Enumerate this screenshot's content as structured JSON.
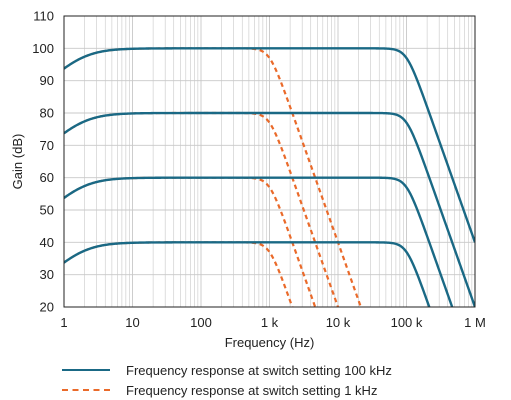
{
  "colors": {
    "series_100k": "#1a6985",
    "series_1k": "#ea6a2a",
    "grid": "#c8c8c8",
    "axis": "#222222"
  },
  "chart_data": {
    "type": "line",
    "xlabel": "Frequency (Hz)",
    "ylabel": "Gain (dB)",
    "x_scale": "log",
    "xlim": [
      1,
      1000000
    ],
    "ylim": [
      20,
      110
    ],
    "grid": true,
    "legend_position": "bottom",
    "x_tick_labels": [
      "1",
      "10",
      "100",
      "1 k",
      "10 k",
      "100 k",
      "1 M"
    ],
    "y_tick_labels": [
      "20",
      "30",
      "40",
      "50",
      "60",
      "70",
      "80",
      "90",
      "100",
      "110"
    ],
    "series": [
      {
        "name": "Frequency response at switch setting 100 kHz",
        "style": "solid",
        "color": "#1a6985",
        "gain_levels_db": [
          100,
          80,
          60,
          40
        ],
        "cutoff_hz": 100000,
        "low_corner_hz": 1.8
      },
      {
        "name": "Frequency response at switch setting 1 kHz",
        "style": "dashed",
        "color": "#ea6a2a",
        "gain_levels_db": [
          100,
          80,
          60,
          40
        ],
        "cutoff_hz": 1000,
        "low_corner_hz": 1.8
      }
    ]
  }
}
